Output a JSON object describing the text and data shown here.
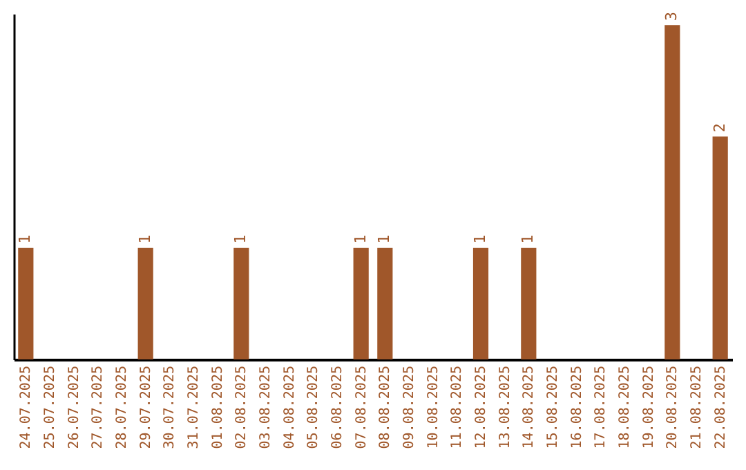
{
  "chart_data": {
    "type": "bar",
    "categories": [
      "24.07.2025",
      "25.07.2025",
      "26.07.2025",
      "27.07.2025",
      "28.07.2025",
      "29.07.2025",
      "30.07.2025",
      "31.07.2025",
      "01.08.2025",
      "02.08.2025",
      "03.08.2025",
      "04.08.2025",
      "05.08.2025",
      "06.08.2025",
      "07.08.2025",
      "08.08.2025",
      "09.08.2025",
      "10.08.2025",
      "11.08.2025",
      "12.08.2025",
      "13.08.2025",
      "14.08.2025",
      "15.08.2025",
      "16.08.2025",
      "17.08.2025",
      "18.08.2025",
      "19.08.2025",
      "20.08.2025",
      "21.08.2025",
      "22.08.2025"
    ],
    "values": [
      1,
      0,
      0,
      0,
      0,
      1,
      0,
      0,
      0,
      1,
      0,
      0,
      0,
      0,
      1,
      1,
      0,
      0,
      0,
      1,
      0,
      1,
      0,
      0,
      0,
      0,
      0,
      3,
      0,
      2
    ],
    "value_labels": [
      "1",
      null,
      null,
      null,
      null,
      "1",
      null,
      null,
      null,
      "1",
      null,
      null,
      null,
      null,
      "1",
      "1",
      null,
      null,
      null,
      "1",
      null,
      "1",
      null,
      null,
      null,
      null,
      null,
      "3",
      null,
      "2"
    ],
    "color": "#a0572a",
    "ylim": [
      0,
      3.1
    ],
    "tick_labels": "x"
  }
}
